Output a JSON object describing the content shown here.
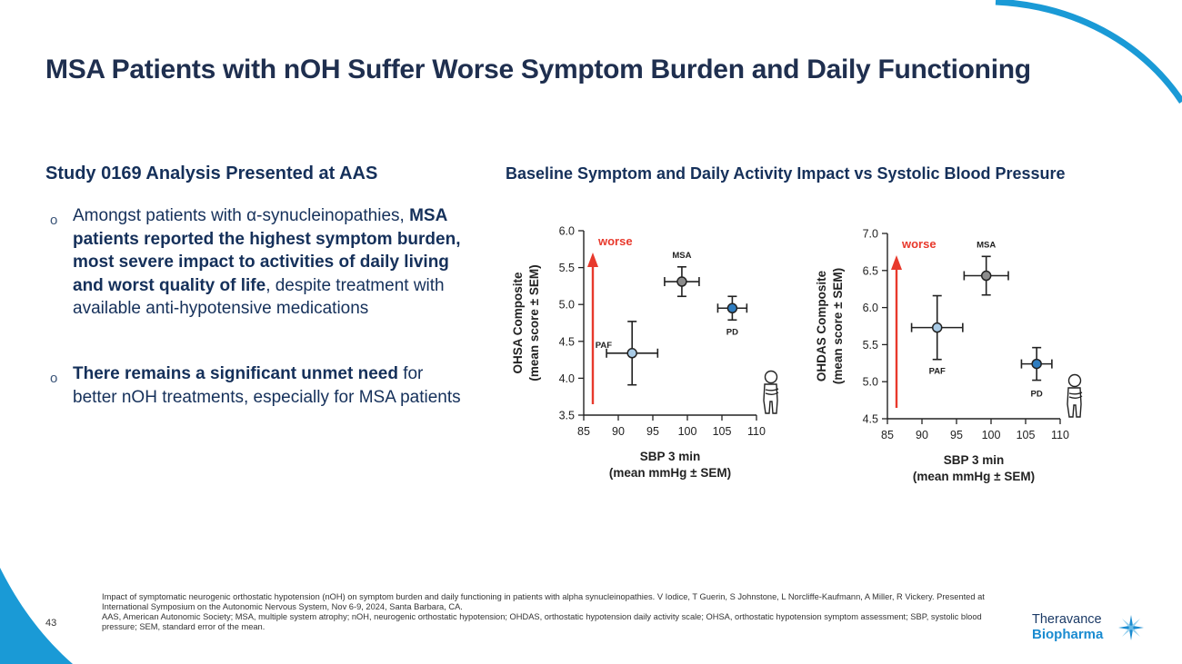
{
  "slide": {
    "title": "MSA Patients with nOH Suffer Worse Symptom Burden and Daily Functioning",
    "page_number": "43"
  },
  "left": {
    "heading": "Study 0169 Analysis Presented at AAS",
    "bullet_marker": "o",
    "bullet1": {
      "part1": "Amongst patients with α-synucleinopathies, ",
      "bold": "MSA patients reported the highest symptom burden, most severe impact to activities of daily living and worst quality of life",
      "part2": ", despite treatment with available anti-hypotensive medications"
    },
    "bullet2": {
      "bold": "There remains a significant unmet need",
      "part2": " for better nOH treatments, especially for MSA patients"
    }
  },
  "charts_heading": "Baseline Symptom and Daily Activity Impact vs Systolic Blood Pressure",
  "colors": {
    "title": "#1f2f4f",
    "text": "#15305a",
    "arrow": "#e8392c",
    "pd_fill": "#2f7dc0",
    "paf_fill": "#a9cbe6",
    "msa_fill": "#8c8c8c",
    "accent": "#1a9ad6"
  },
  "chart_data": [
    {
      "type": "scatter",
      "ylabel_line1": "OHSA Composite",
      "ylabel_line2": "(mean score ± SEM)",
      "xlabel_line1": "SBP 3 min",
      "xlabel_line2": "(mean mmHg ± SEM)",
      "xlim": [
        85,
        110
      ],
      "ylim": [
        3.5,
        6.0
      ],
      "xticks": [
        "85",
        "90",
        "95",
        "100",
        "105",
        "110"
      ],
      "yticks": [
        "3.5",
        "4.0",
        "4.5",
        "5.0",
        "5.5",
        "6.0"
      ],
      "arrow_label": "worse",
      "series": [
        {
          "name": "MSA",
          "x": 99.2,
          "y": 5.31,
          "xerr": 2.5,
          "yerr": 0.2,
          "fill": "#8c8c8c",
          "label_pos": "above"
        },
        {
          "name": "PAF",
          "x": 92.0,
          "y": 4.34,
          "xerr": 3.7,
          "yerr": 0.43,
          "fill": "#a9cbe6",
          "label_pos": "left"
        },
        {
          "name": "PD",
          "x": 106.5,
          "y": 4.95,
          "xerr": 2.1,
          "yerr": 0.16,
          "fill": "#2f7dc0",
          "label_pos": "below"
        }
      ]
    },
    {
      "type": "scatter",
      "ylabel_line1": "OHDAS Composite",
      "ylabel_line2": "(mean score ± SEM)",
      "xlabel_line1": "SBP 3 min",
      "xlabel_line2": "(mean mmHg ± SEM)",
      "xlim": [
        85,
        110
      ],
      "ylim": [
        4.5,
        7.0
      ],
      "xticks": [
        "85",
        "90",
        "95",
        "100",
        "105",
        "110"
      ],
      "yticks": [
        "4.5",
        "5.0",
        "5.5",
        "6.0",
        "6.5",
        "7.0"
      ],
      "arrow_label": "worse",
      "series": [
        {
          "name": "MSA",
          "x": 99.3,
          "y": 6.43,
          "xerr": 3.2,
          "yerr": 0.26,
          "fill": "#8c8c8c",
          "label_pos": "above"
        },
        {
          "name": "PAF",
          "x": 92.2,
          "y": 5.73,
          "xerr": 3.7,
          "yerr": 0.43,
          "fill": "#a9cbe6",
          "label_pos": "below"
        },
        {
          "name": "PD",
          "x": 106.6,
          "y": 5.24,
          "xerr": 2.2,
          "yerr": 0.22,
          "fill": "#2f7dc0",
          "label_pos": "below"
        }
      ]
    }
  ],
  "footnote": {
    "line1": "Impact of symptomatic neurogenic orthostatic hypotension (nOH) on symptom burden and daily functioning in patients with alpha synucleinopathies.  V Iodice, T Guerin, S Johnstone, L Norcliffe-Kaufmann, A Miller, R Vickery.  Presented at International Symposium on the Autonomic Nervous System, Nov 6-9, 2024, Santa Barbara, CA.",
    "line2": "AAS, American Autonomic Society; MSA, multiple system atrophy; nOH, neurogenic orthostatic hypotension; OHDAS, orthostatic hypotension daily activity scale; OHSA, orthostatic hypotension symptom assessment; SBP, systolic blood pressure; SEM, standard error of the mean."
  },
  "logo": {
    "line1": "Theravance",
    "line2": "Biopharma"
  }
}
